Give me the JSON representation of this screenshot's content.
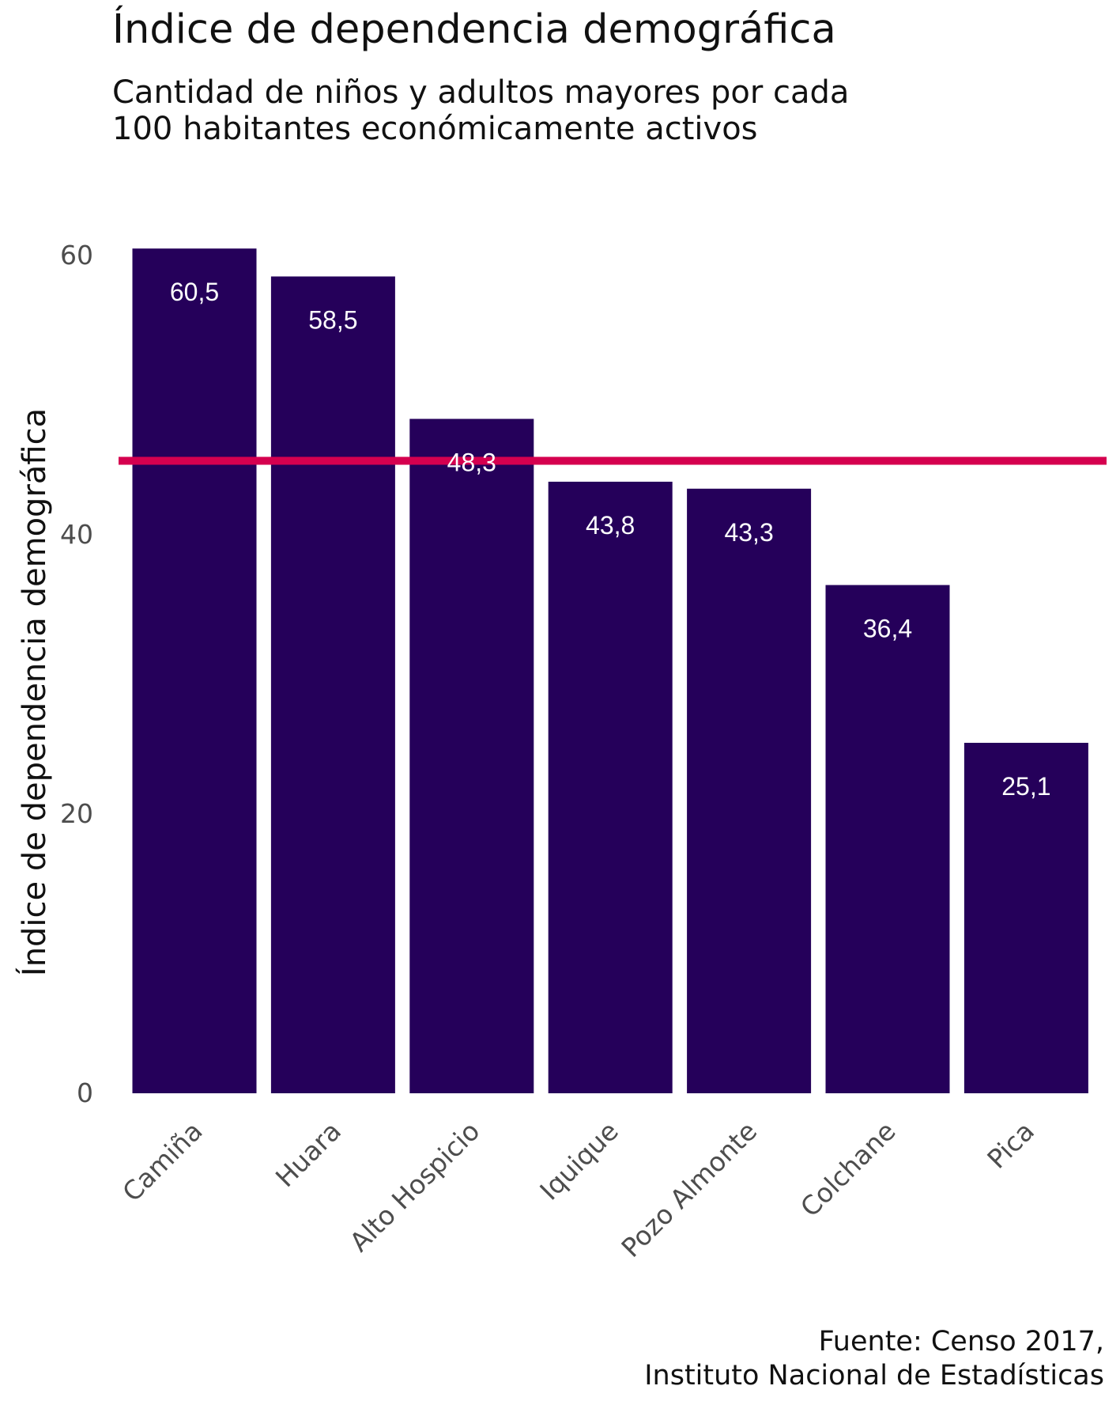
{
  "title": "Índice de dependencia demográfica",
  "subtitle": "Cantidad de niños y adultos mayores por cada\n100 habitantes económicamente activos",
  "caption": "Fuente: Censo 2017,\nInstituto Nacional de Estadísticas",
  "colors": {
    "bar": "#25005a",
    "reference_line": "#d5004f",
    "bar_label": "#ffffff",
    "tick": "#4d4d4d"
  },
  "chart_data": {
    "type": "bar",
    "title": "Índice de dependencia demográfica",
    "subtitle": "Cantidad de niños y adultos mayores por cada\n100 habitantes económicamente activos",
    "xlabel": "",
    "ylabel": "Índice de dependencia demográfica",
    "categories": [
      "Camiña",
      "Huara",
      "Alto Hospicio",
      "Iquique",
      "Pozo Almonte",
      "Colchane",
      "Pica"
    ],
    "values": [
      60.5,
      58.5,
      48.3,
      43.8,
      43.3,
      36.4,
      25.1
    ],
    "value_labels": [
      "60,5",
      "58,5",
      "48,3",
      "43,8",
      "43,3",
      "36,4",
      "25,1"
    ],
    "reference_line": 45.3,
    "yticks": [
      0,
      20,
      40,
      60
    ],
    "ytick_labels": [
      "0",
      "20",
      "40",
      "60"
    ],
    "ylim": [
      0,
      62
    ],
    "grid": false,
    "legend": "none"
  }
}
